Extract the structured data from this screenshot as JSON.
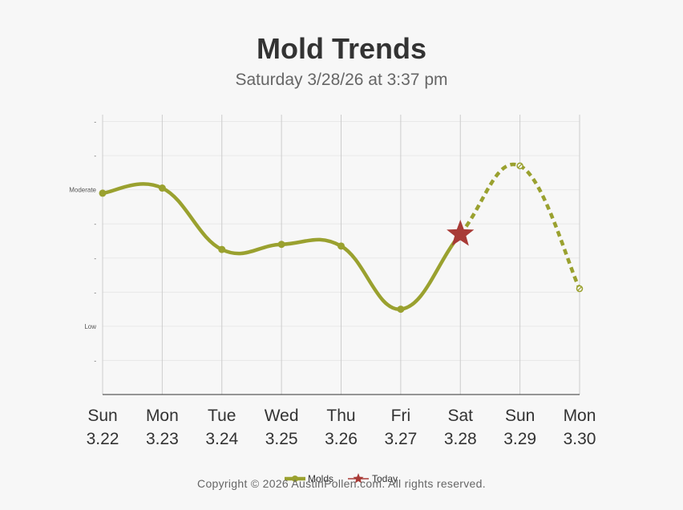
{
  "chart_data": {
    "type": "line",
    "title": "Mold Trends",
    "subtitle": "Saturday 3/28/26 at 3:37 pm",
    "ylim": [
      0,
      8.2
    ],
    "y_ticks": [
      {
        "value": 1,
        "label": "-"
      },
      {
        "value": 2,
        "label": "Low"
      },
      {
        "value": 3,
        "label": "-"
      },
      {
        "value": 4,
        "label": "-"
      },
      {
        "value": 5,
        "label": "-"
      },
      {
        "value": 6,
        "label": "Moderate"
      },
      {
        "value": 7,
        "label": "-"
      },
      {
        "value": 8,
        "label": "-"
      }
    ],
    "x_categories": [
      {
        "day": "Sun",
        "date": "3.22"
      },
      {
        "day": "Mon",
        "date": "3.23"
      },
      {
        "day": "Tue",
        "date": "3.24"
      },
      {
        "day": "Wed",
        "date": "3.25"
      },
      {
        "day": "Thu",
        "date": "3.26"
      },
      {
        "day": "Fri",
        "date": "3.27"
      },
      {
        "day": "Sat",
        "date": "3.28"
      },
      {
        "day": "Sun",
        "date": "3.29"
      },
      {
        "day": "Mon",
        "date": "3.30"
      }
    ],
    "series": [
      {
        "name": "Molds",
        "color": "#9aa12f",
        "values": [
          5.9,
          6.05,
          4.25,
          4.4,
          4.35,
          2.5,
          4.7,
          6.7,
          3.1
        ],
        "forecast_from_index": 6
      }
    ],
    "today": {
      "name": "Today",
      "index": 6,
      "value": 4.7,
      "color": "#a83a36"
    },
    "legend": {
      "placement": "bottom-center",
      "items": [
        "Molds",
        "Today"
      ]
    },
    "grid": true
  },
  "footer": {
    "copyright": "Copyright © 2026 AustinPollen.com.  All rights reserved."
  }
}
